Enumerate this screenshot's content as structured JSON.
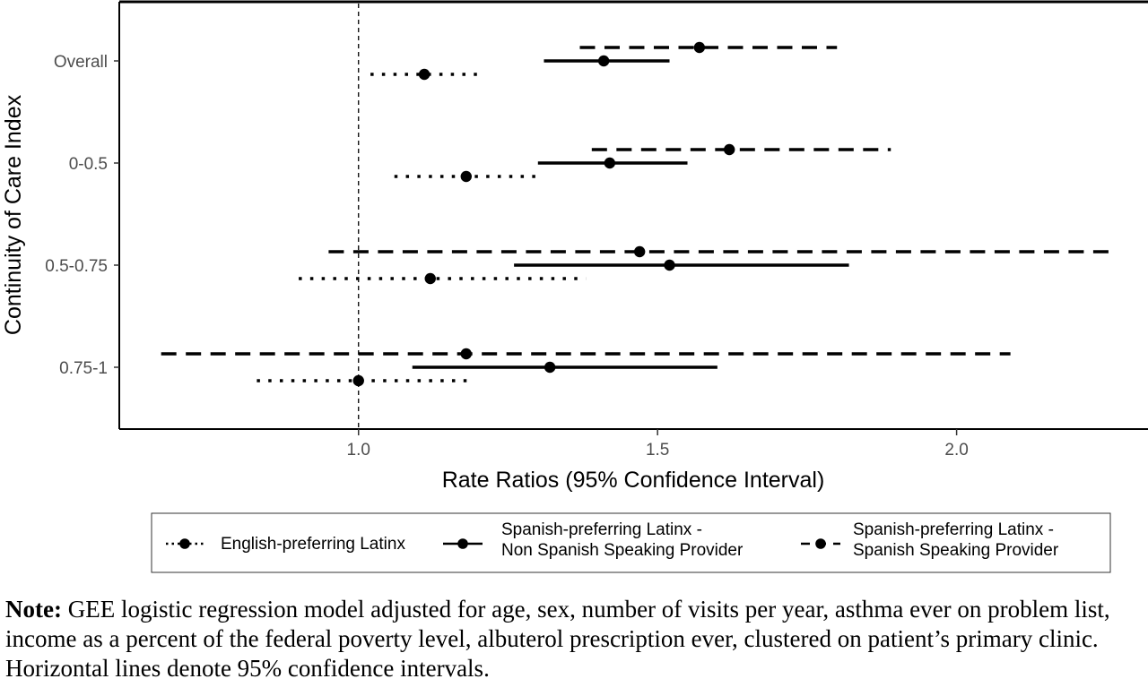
{
  "chart_data": {
    "type": "forest",
    "ylabel": "Continuity of Care Index",
    "xlabel": "Rate Ratios (95% Confidence Interval)",
    "xlim": [
      0.6,
      2.32
    ],
    "x_ticks": [
      "1.0",
      "1.5",
      "2.0"
    ],
    "x_tick_values": [
      1.0,
      1.5,
      2.0
    ],
    "reference_line": 1.0,
    "categories": [
      "Overall",
      "0-0.5",
      "0.5-0.75",
      "0.75-1"
    ],
    "series": [
      {
        "name": "English-preferring Latinx",
        "linestyle": "dotted",
        "estimates": [
          1.11,
          1.18,
          1.12,
          1.0
        ],
        "lower": [
          1.02,
          1.06,
          0.9,
          0.83
        ],
        "upper": [
          1.2,
          1.3,
          1.38,
          1.19
        ]
      },
      {
        "name": "Spanish-preferring Latinx - Non Spanish Speaking Provider",
        "linestyle": "solid",
        "estimates": [
          1.41,
          1.42,
          1.52,
          1.32
        ],
        "lower": [
          1.31,
          1.3,
          1.26,
          1.09
        ],
        "upper": [
          1.52,
          1.55,
          1.82,
          1.6
        ]
      },
      {
        "name": "Spanish-preferring Latinx - Spanish Speaking Provider",
        "linestyle": "dashed",
        "estimates": [
          1.57,
          1.62,
          1.47,
          1.18
        ],
        "lower": [
          1.37,
          1.39,
          0.95,
          0.67
        ],
        "upper": [
          1.8,
          1.89,
          2.26,
          2.09
        ]
      }
    ],
    "legend": {
      "position": "bottom",
      "entries": [
        [
          "English-preferring Latinx"
        ],
        [
          "Spanish-preferring Latinx -",
          "Non Spanish Speaking Provider"
        ],
        [
          "Spanish-preferring Latinx -",
          "Spanish Speaking Provider"
        ]
      ]
    }
  },
  "note": {
    "label": "Note:",
    "text": " GEE logistic regression model adjusted for age, sex, number of visits per year, asthma ever on problem list, income as a percent of the federal poverty level, albuterol prescription ever, clustered on patient’s primary clinic. Horizontal lines denote 95% confidence intervals."
  }
}
